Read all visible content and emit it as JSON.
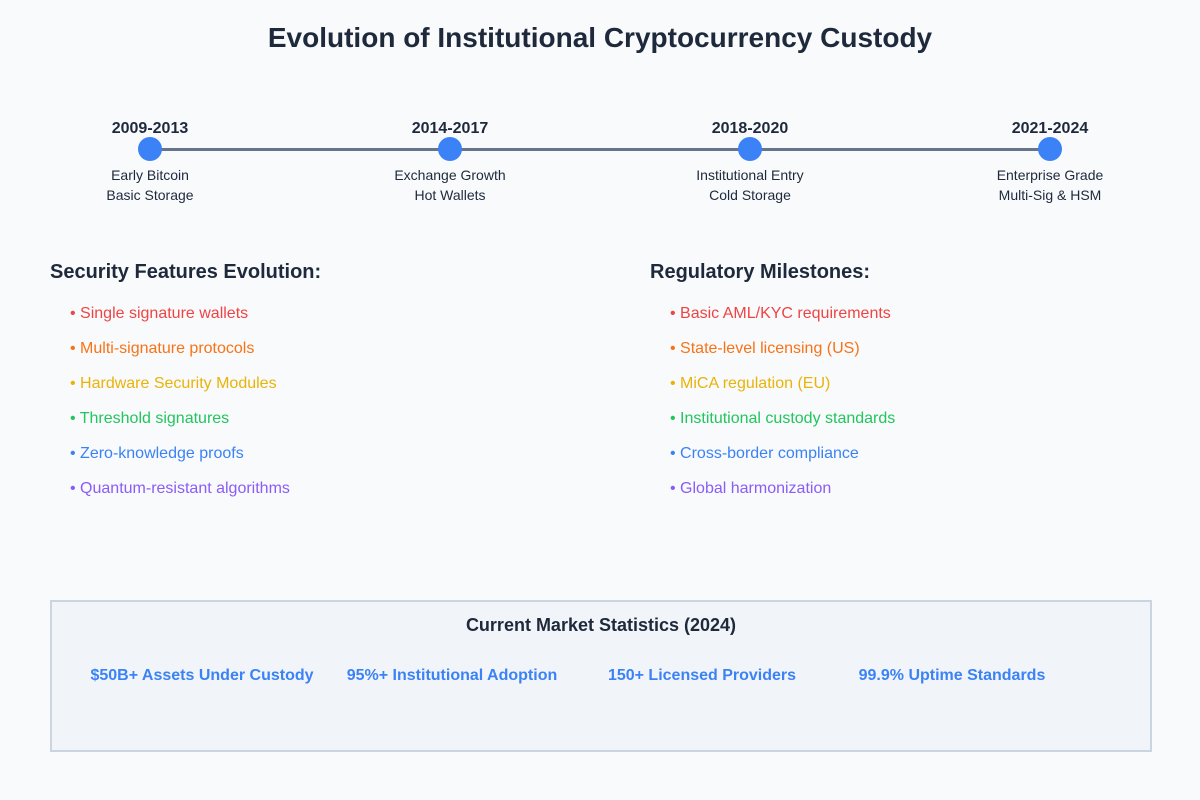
{
  "title": "Evolution of Institutional Cryptocurrency Custody",
  "timeline": [
    {
      "years": "2009-2013",
      "line1": "Early Bitcoin",
      "line2": "Basic Storage"
    },
    {
      "years": "2014-2017",
      "line1": "Exchange Growth",
      "line2": "Hot Wallets"
    },
    {
      "years": "2018-2020",
      "line1": "Institutional Entry",
      "line2": "Cold Storage"
    },
    {
      "years": "2021-2024",
      "line1": "Enterprise Grade",
      "line2": "Multi-Sig & HSM"
    }
  ],
  "security": {
    "heading": "Security Features Evolution:",
    "items": [
      {
        "text": "• Single signature wallets",
        "color": "#ef4444"
      },
      {
        "text": "• Multi-signature protocols",
        "color": "#f97316"
      },
      {
        "text": "• Hardware Security Modules",
        "color": "#eab308"
      },
      {
        "text": "• Threshold signatures",
        "color": "#22c55e"
      },
      {
        "text": "• Zero-knowledge proofs",
        "color": "#3b82f6"
      },
      {
        "text": "• Quantum-resistant algorithms",
        "color": "#8b5cf6"
      }
    ]
  },
  "regulatory": {
    "heading": "Regulatory Milestones:",
    "items": [
      {
        "text": "• Basic AML/KYC requirements",
        "color": "#ef4444"
      },
      {
        "text": "• State-level licensing (US)",
        "color": "#f97316"
      },
      {
        "text": "• MiCA regulation (EU)",
        "color": "#eab308"
      },
      {
        "text": "• Institutional custody standards",
        "color": "#22c55e"
      },
      {
        "text": "• Cross-border compliance",
        "color": "#3b82f6"
      },
      {
        "text": "• Global harmonization",
        "color": "#8b5cf6"
      }
    ]
  },
  "stats": {
    "title": "Current Market Statistics (2024)",
    "items": [
      "$50B+ Assets Under Custody",
      "95%+ Institutional Adoption",
      "150+ Licensed Providers",
      "99.9% Uptime Standards"
    ]
  },
  "colors": {
    "accent": "#3b82f6",
    "line": "#64748b",
    "text": "#1e293b"
  }
}
